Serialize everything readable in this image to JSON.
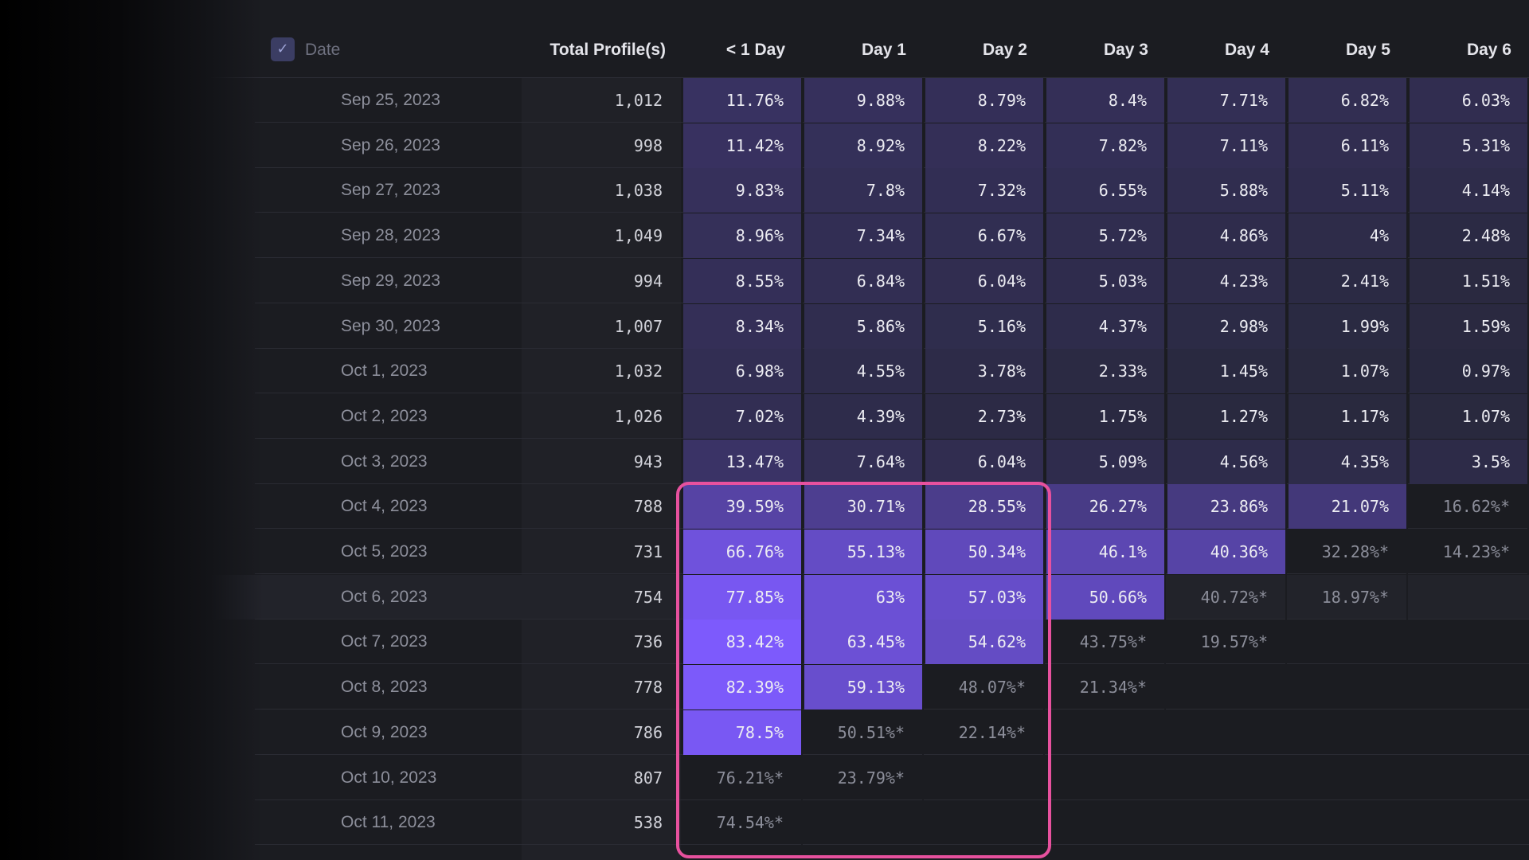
{
  "header": {
    "date_label": "Date",
    "columns": [
      "Total Profile(s)",
      "< 1 Day",
      "Day 1",
      "Day 2",
      "Day 3",
      "Day 4",
      "Day 5",
      "Day 6"
    ]
  },
  "checkbox_icon": "check-icon",
  "colors": {
    "background": "#1b1c21",
    "highlight_border": "#e7519e",
    "heat_low": "#262738",
    "heat_high": "#7e5bff",
    "estimated_text": "#8c8e9a"
  },
  "rows": [
    {
      "date": "Sep 25, 2023",
      "total": "1,012",
      "cells": [
        {
          "v": "11.76%"
        },
        {
          "v": "9.88%"
        },
        {
          "v": "8.79%"
        },
        {
          "v": "8.4%"
        },
        {
          "v": "7.71%"
        },
        {
          "v": "6.82%"
        },
        {
          "v": "6.03%"
        }
      ]
    },
    {
      "date": "Sep 26, 2023",
      "total": "998",
      "cells": [
        {
          "v": "11.42%"
        },
        {
          "v": "8.92%"
        },
        {
          "v": "8.22%"
        },
        {
          "v": "7.82%"
        },
        {
          "v": "7.11%"
        },
        {
          "v": "6.11%"
        },
        {
          "v": "5.31%"
        }
      ]
    },
    {
      "date": "Sep 27, 2023",
      "total": "1,038",
      "cells": [
        {
          "v": "9.83%"
        },
        {
          "v": "7.8%"
        },
        {
          "v": "7.32%"
        },
        {
          "v": "6.55%"
        },
        {
          "v": "5.88%"
        },
        {
          "v": "5.11%"
        },
        {
          "v": "4.14%"
        }
      ]
    },
    {
      "date": "Sep 28, 2023",
      "total": "1,049",
      "cells": [
        {
          "v": "8.96%"
        },
        {
          "v": "7.34%"
        },
        {
          "v": "6.67%"
        },
        {
          "v": "5.72%"
        },
        {
          "v": "4.86%"
        },
        {
          "v": "4%"
        },
        {
          "v": "2.48%"
        }
      ]
    },
    {
      "date": "Sep 29, 2023",
      "total": "994",
      "cells": [
        {
          "v": "8.55%"
        },
        {
          "v": "6.84%"
        },
        {
          "v": "6.04%"
        },
        {
          "v": "5.03%"
        },
        {
          "v": "4.23%"
        },
        {
          "v": "2.41%"
        },
        {
          "v": "1.51%"
        }
      ]
    },
    {
      "date": "Sep 30, 2023",
      "total": "1,007",
      "cells": [
        {
          "v": "8.34%"
        },
        {
          "v": "5.86%"
        },
        {
          "v": "5.16%"
        },
        {
          "v": "4.37%"
        },
        {
          "v": "2.98%"
        },
        {
          "v": "1.99%"
        },
        {
          "v": "1.59%"
        }
      ]
    },
    {
      "date": "Oct 1, 2023",
      "total": "1,032",
      "cells": [
        {
          "v": "6.98%"
        },
        {
          "v": "4.55%"
        },
        {
          "v": "3.78%"
        },
        {
          "v": "2.33%"
        },
        {
          "v": "1.45%"
        },
        {
          "v": "1.07%"
        },
        {
          "v": "0.97%"
        }
      ]
    },
    {
      "date": "Oct 2, 2023",
      "total": "1,026",
      "cells": [
        {
          "v": "7.02%"
        },
        {
          "v": "4.39%"
        },
        {
          "v": "2.73%"
        },
        {
          "v": "1.75%"
        },
        {
          "v": "1.27%"
        },
        {
          "v": "1.17%"
        },
        {
          "v": "1.07%"
        }
      ]
    },
    {
      "date": "Oct 3, 2023",
      "total": "943",
      "cells": [
        {
          "v": "13.47%"
        },
        {
          "v": "7.64%"
        },
        {
          "v": "6.04%"
        },
        {
          "v": "5.09%"
        },
        {
          "v": "4.56%"
        },
        {
          "v": "4.35%"
        },
        {
          "v": "3.5%"
        }
      ]
    },
    {
      "date": "Oct 4, 2023",
      "total": "788",
      "cells": [
        {
          "v": "39.59%"
        },
        {
          "v": "30.71%"
        },
        {
          "v": "28.55%"
        },
        {
          "v": "26.27%"
        },
        {
          "v": "23.86%"
        },
        {
          "v": "21.07%"
        },
        {
          "v": "16.62%*",
          "est": true
        }
      ]
    },
    {
      "date": "Oct 5, 2023",
      "total": "731",
      "cells": [
        {
          "v": "66.76%"
        },
        {
          "v": "55.13%"
        },
        {
          "v": "50.34%"
        },
        {
          "v": "46.1%"
        },
        {
          "v": "40.36%"
        },
        {
          "v": "32.28%*",
          "est": true
        },
        {
          "v": "14.23%*",
          "est": true
        }
      ]
    },
    {
      "date": "Oct 6, 2023",
      "total": "754",
      "highlighted": true,
      "cells": [
        {
          "v": "77.85%"
        },
        {
          "v": "63%"
        },
        {
          "v": "57.03%"
        },
        {
          "v": "50.66%"
        },
        {
          "v": "40.72%*",
          "est": true
        },
        {
          "v": "18.97%*",
          "est": true
        }
      ]
    },
    {
      "date": "Oct 7, 2023",
      "total": "736",
      "cells": [
        {
          "v": "83.42%"
        },
        {
          "v": "63.45%"
        },
        {
          "v": "54.62%"
        },
        {
          "v": "43.75%*",
          "est": true
        },
        {
          "v": "19.57%*",
          "est": true
        }
      ]
    },
    {
      "date": "Oct 8, 2023",
      "total": "778",
      "cells": [
        {
          "v": "82.39%"
        },
        {
          "v": "59.13%"
        },
        {
          "v": "48.07%*",
          "est": true
        },
        {
          "v": "21.34%*",
          "est": true
        }
      ]
    },
    {
      "date": "Oct 9, 2023",
      "total": "786",
      "cells": [
        {
          "v": "78.5%"
        },
        {
          "v": "50.51%*",
          "est": true
        },
        {
          "v": "22.14%*",
          "est": true
        }
      ]
    },
    {
      "date": "Oct 10, 2023",
      "total": "807",
      "cells": [
        {
          "v": "76.21%*",
          "est": true
        },
        {
          "v": "23.79%*",
          "est": true
        }
      ]
    },
    {
      "date": "Oct 11, 2023",
      "total": "538",
      "cells": [
        {
          "v": "74.54%*",
          "est": true
        }
      ]
    }
  ]
}
